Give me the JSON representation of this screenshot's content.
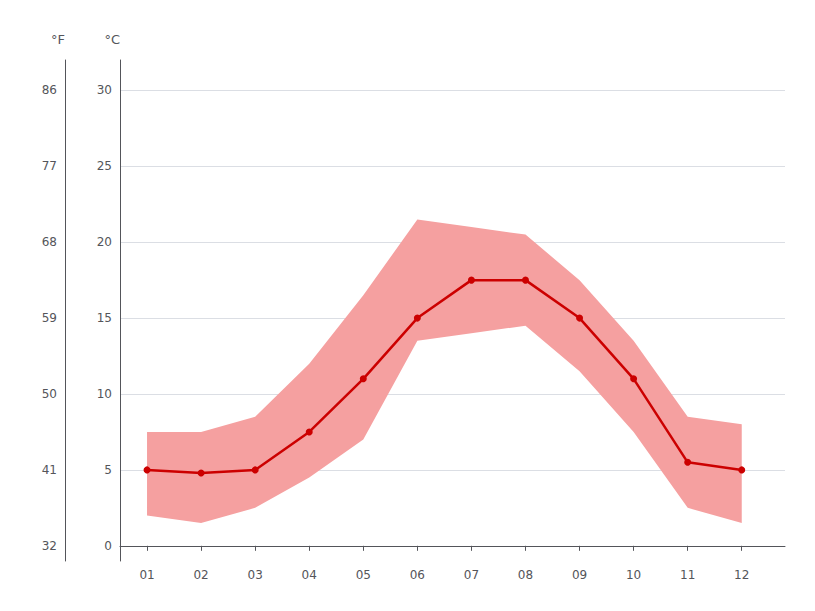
{
  "chart_data": {
    "type": "line",
    "x": [
      1,
      2,
      3,
      4,
      5,
      6,
      7,
      8,
      9,
      10,
      11,
      12
    ],
    "xlim": [
      0.5,
      12.8
    ],
    "xticks": [
      {
        "value": 1,
        "label": "01"
      },
      {
        "value": 2,
        "label": "02"
      },
      {
        "value": 3,
        "label": "03"
      },
      {
        "value": 4,
        "label": "04"
      },
      {
        "value": 5,
        "label": "05"
      },
      {
        "value": 6,
        "label": "06"
      },
      {
        "value": 7,
        "label": "07"
      },
      {
        "value": 8,
        "label": "08"
      },
      {
        "value": 9,
        "label": "09"
      },
      {
        "value": 10,
        "label": "10"
      },
      {
        "value": 11,
        "label": "11"
      },
      {
        "value": 12,
        "label": "12"
      }
    ],
    "ylabel": "°C",
    "ylim": [
      -1,
      32
    ],
    "yticks": [
      0,
      5,
      10,
      15,
      20,
      25,
      30
    ],
    "y2label": "°F",
    "y2lim": [
      30.2,
      89.6
    ],
    "y2ticks": [
      32,
      41,
      50,
      59,
      68,
      77,
      86
    ],
    "grid": true,
    "series": [
      {
        "type": "band",
        "color": "#f5a0a0",
        "lower": [
          2.0,
          1.5,
          2.5,
          4.5,
          7.0,
          13.5,
          14.0,
          14.5,
          11.5,
          7.5,
          2.5,
          1.5
        ],
        "upper": [
          7.5,
          7.5,
          8.5,
          12.0,
          16.5,
          21.5,
          21.0,
          20.5,
          17.5,
          13.5,
          8.5,
          8.0
        ]
      },
      {
        "type": "line",
        "color": "#cc0000",
        "marker": "circle",
        "values": [
          5.0,
          4.8,
          5.0,
          7.5,
          11.0,
          15.0,
          17.5,
          17.5,
          15.0,
          11.0,
          5.5,
          5.0
        ]
      }
    ]
  }
}
